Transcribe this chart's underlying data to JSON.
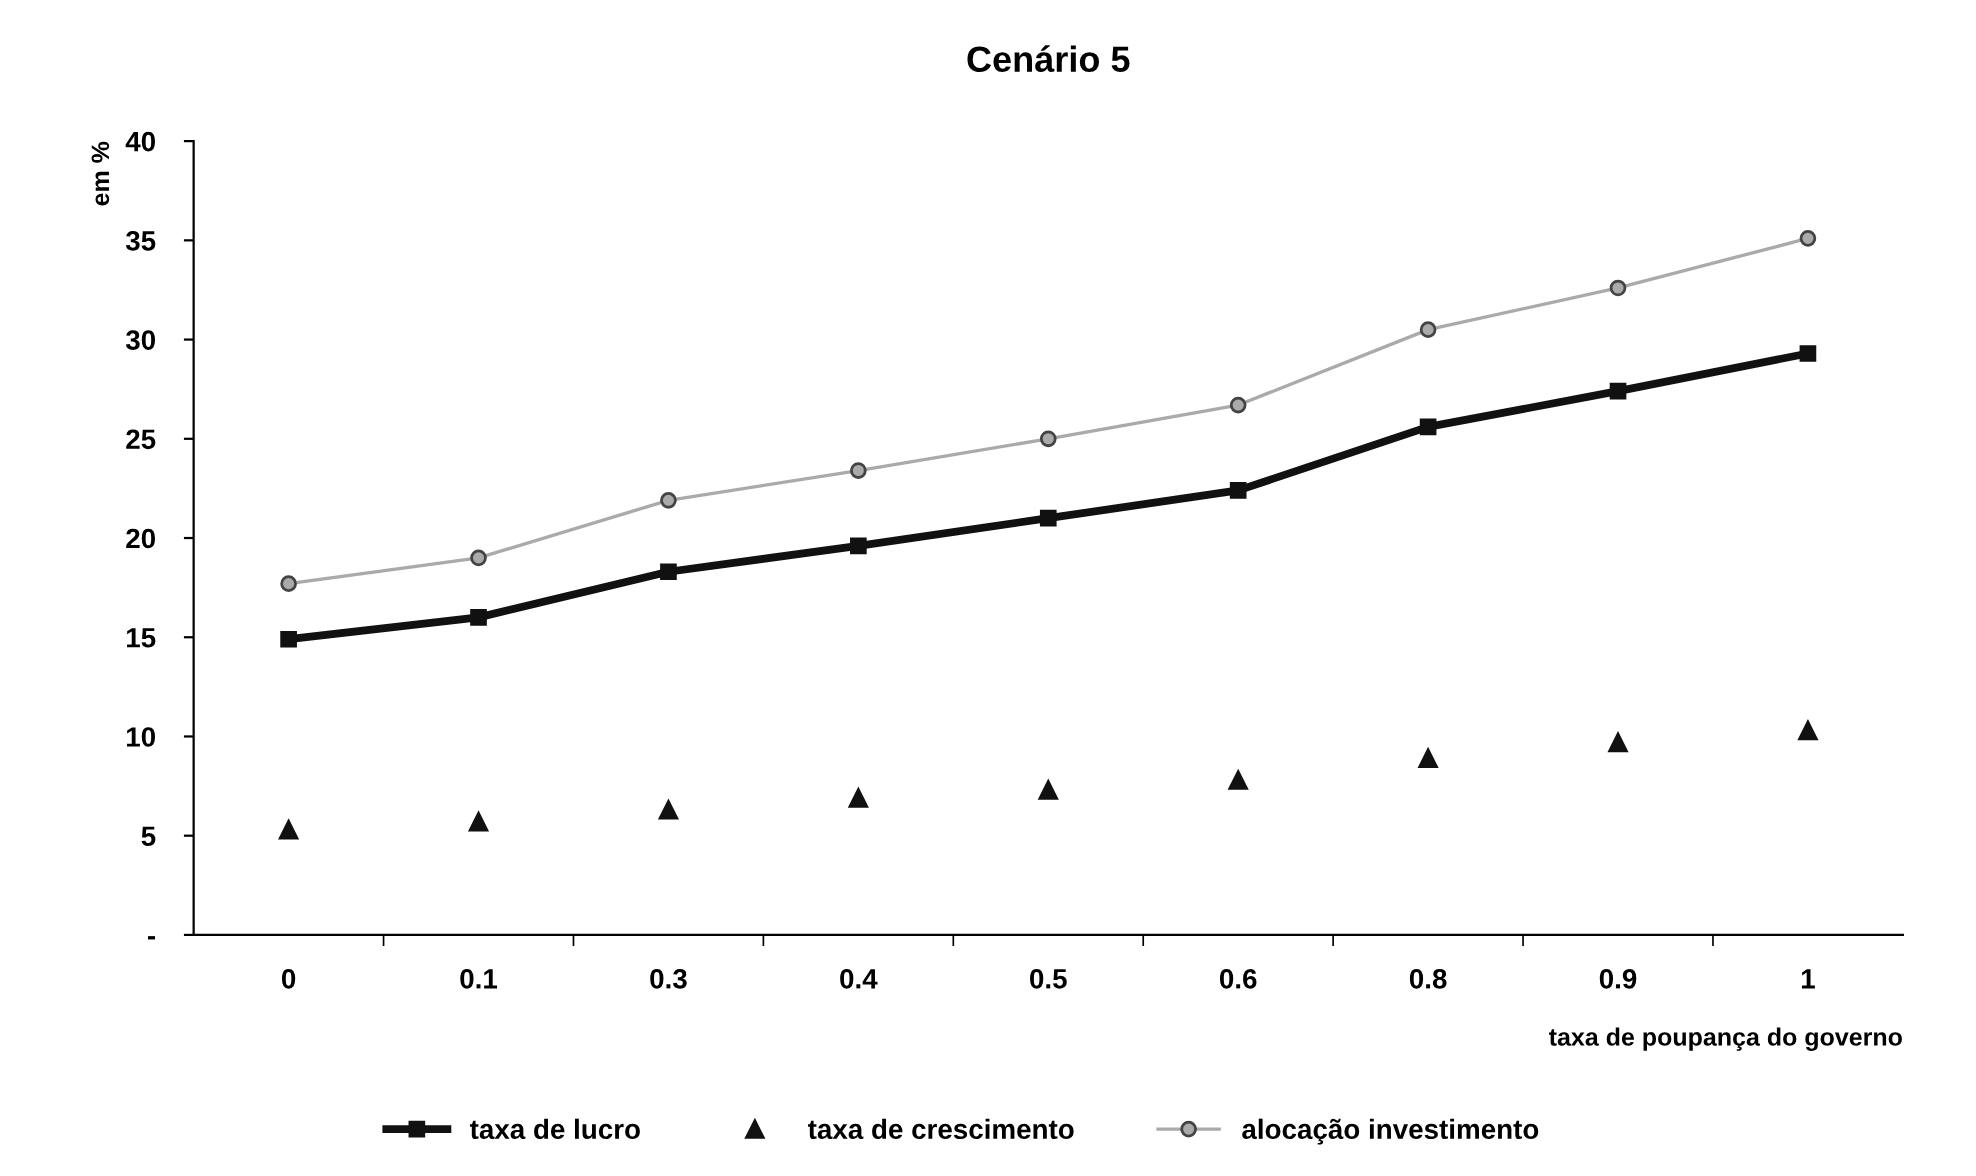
{
  "chart_data": {
    "type": "line",
    "title": "Cenário 5",
    "xlabel": "taxa de poupança do governo",
    "ylabel": "em %",
    "categories": [
      "0",
      "0.1",
      "0.3",
      "0.4",
      "0.5",
      "0.6",
      "0.8",
      "0.9",
      "1"
    ],
    "series": [
      {
        "name": "taxa de lucro",
        "color": "#111111",
        "marker": "square",
        "line_style": "solid",
        "values": [
          14.9,
          16.0,
          18.3,
          19.6,
          21.0,
          22.4,
          25.6,
          27.4,
          29.3
        ]
      },
      {
        "name": "taxa de crescimento",
        "color": "#111111",
        "type": "scatter",
        "marker": "triangle",
        "values": [
          5.3,
          5.7,
          6.3,
          6.9,
          7.3,
          7.8,
          8.9,
          9.7,
          10.3
        ]
      },
      {
        "name": "alocação investimento",
        "color": "#aaaaaa",
        "marker": "circle",
        "line_style": "solid",
        "values": [
          17.7,
          19.0,
          21.9,
          23.4,
          25.0,
          26.7,
          30.5,
          32.6,
          35.1
        ]
      }
    ],
    "ylim": [
      0,
      40
    ],
    "yticks": [
      {
        "value": 0,
        "label": "-"
      },
      5,
      10,
      15,
      20,
      25,
      30,
      35,
      40
    ],
    "grid": false,
    "legend": "bottom"
  }
}
